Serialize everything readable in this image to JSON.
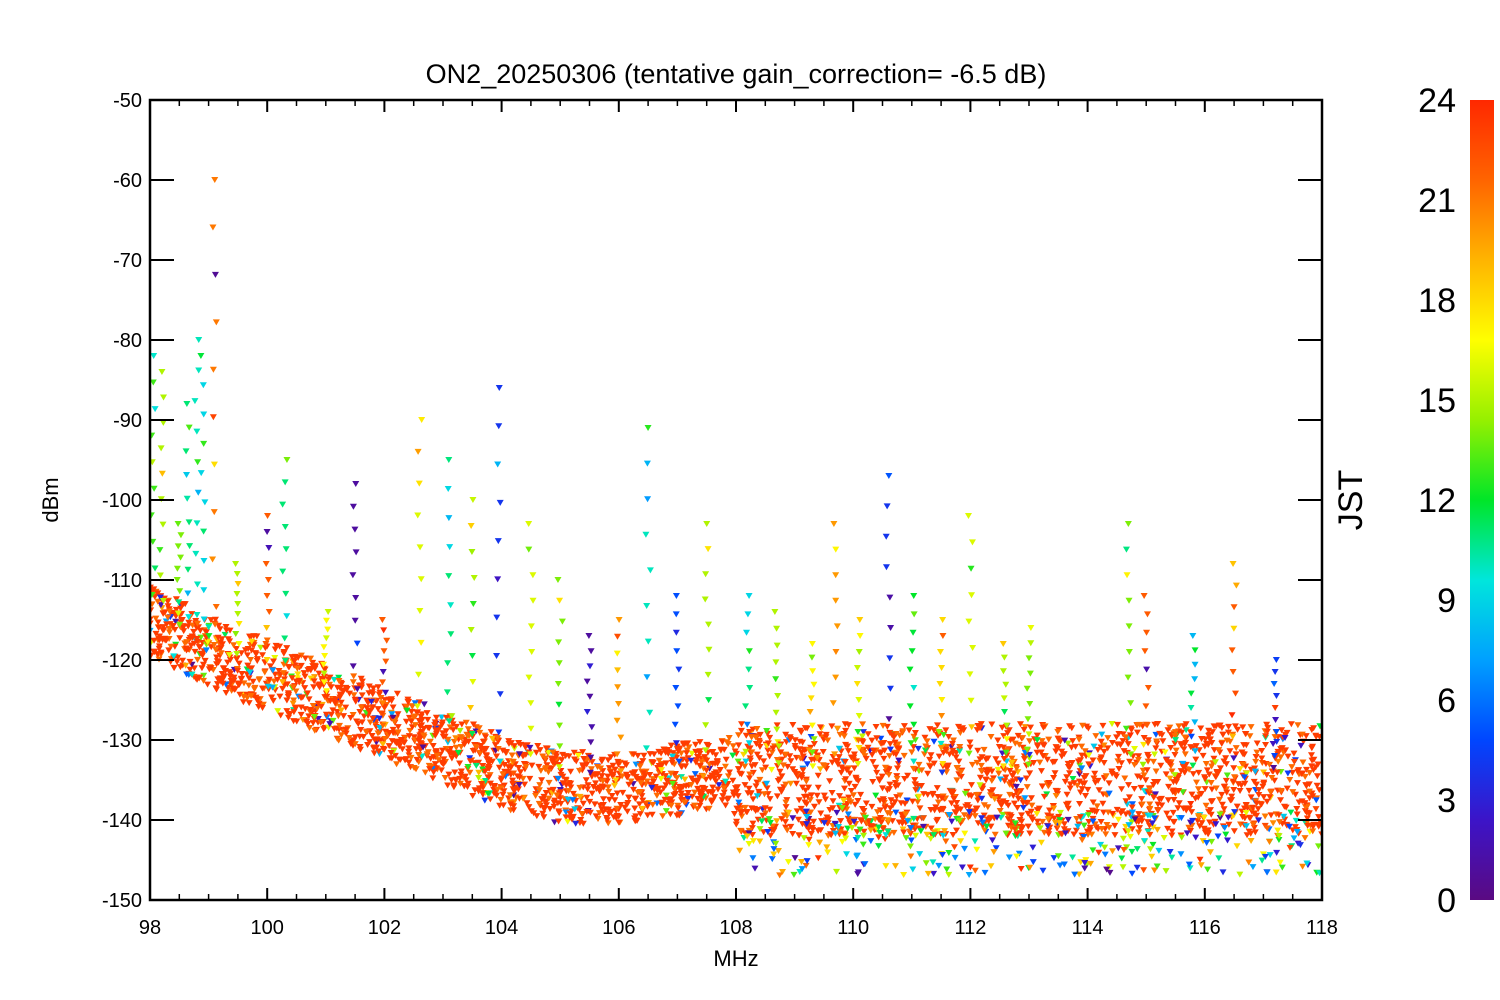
{
  "chart_data": {
    "type": "scatter",
    "title": "ON2_20250306 (tentative gain_correction= -6.5 dB)",
    "xlabel": "MHz",
    "ylabel": "dBm",
    "xlim": [
      98,
      118
    ],
    "ylim": [
      -150,
      -50
    ],
    "x_ticks": [
      98,
      100,
      102,
      104,
      106,
      108,
      110,
      112,
      114,
      116,
      118
    ],
    "y_ticks": [
      -150,
      -140,
      -130,
      -120,
      -110,
      -100,
      -90,
      -80,
      -70,
      -60,
      -50
    ],
    "grid": false,
    "colorbar": {
      "label": "JST",
      "range": [
        0,
        24
      ],
      "ticks": [
        0,
        3,
        6,
        9,
        12,
        15,
        18,
        21,
        24
      ],
      "colormap": "rainbow",
      "colors": [
        "#5a0a82",
        "#3c14c8",
        "#0046ff",
        "#00a0ff",
        "#00e6dc",
        "#00e628",
        "#96f000",
        "#ffff00",
        "#ffb400",
        "#ff6400",
        "#ff2800"
      ]
    },
    "noise_floor": [
      {
        "x": 98.0,
        "y": -115
      },
      {
        "x": 99.0,
        "y": -119
      },
      {
        "x": 100.0,
        "y": -122
      },
      {
        "x": 101.0,
        "y": -125
      },
      {
        "x": 102.0,
        "y": -128
      },
      {
        "x": 103.0,
        "y": -131
      },
      {
        "x": 104.0,
        "y": -134
      },
      {
        "x": 105.0,
        "y": -136
      },
      {
        "x": 106.0,
        "y": -136
      },
      {
        "x": 107.0,
        "y": -135
      },
      {
        "x": 107.9,
        "y": -134
      },
      {
        "x": 108.0,
        "y": -135
      },
      {
        "x": 110.0,
        "y": -135
      },
      {
        "x": 112.0,
        "y": -135
      },
      {
        "x": 114.0,
        "y": -135
      },
      {
        "x": 116.0,
        "y": -135
      },
      {
        "x": 118.0,
        "y": -135
      }
    ],
    "peaks": [
      {
        "x": 98.05,
        "y": -82,
        "hour": 13
      },
      {
        "x": 98.2,
        "y": -84,
        "hour": 15
      },
      {
        "x": 98.5,
        "y": -103,
        "hour": 14
      },
      {
        "x": 98.65,
        "y": -88,
        "hour": 11
      },
      {
        "x": 98.8,
        "y": -80,
        "hour": 10
      },
      {
        "x": 98.9,
        "y": -82,
        "hour": 9
      },
      {
        "x": 99.1,
        "y": -60,
        "hour": 21
      },
      {
        "x": 99.5,
        "y": -108,
        "hour": 15
      },
      {
        "x": 100.0,
        "y": -102,
        "hour": 22
      },
      {
        "x": 100.3,
        "y": -95,
        "hour": 11
      },
      {
        "x": 101.0,
        "y": -114,
        "hour": 17
      },
      {
        "x": 101.5,
        "y": -98,
        "hour": 1
      },
      {
        "x": 102.0,
        "y": -115,
        "hour": 22
      },
      {
        "x": 102.6,
        "y": -90,
        "hour": 16
      },
      {
        "x": 103.1,
        "y": -95,
        "hour": 11
      },
      {
        "x": 103.5,
        "y": -100,
        "hour": 15
      },
      {
        "x": 103.95,
        "y": -86,
        "hour": 4
      },
      {
        "x": 104.5,
        "y": -103,
        "hour": 16
      },
      {
        "x": 105.0,
        "y": -110,
        "hour": 14
      },
      {
        "x": 105.5,
        "y": -117,
        "hour": 1
      },
      {
        "x": 106.0,
        "y": -115,
        "hour": 20
      },
      {
        "x": 106.5,
        "y": -91,
        "hour": 10
      },
      {
        "x": 107.0,
        "y": -112,
        "hour": 5
      },
      {
        "x": 107.5,
        "y": -103,
        "hour": 15
      },
      {
        "x": 108.2,
        "y": -112,
        "hour": 9
      },
      {
        "x": 108.7,
        "y": -114,
        "hour": 15
      },
      {
        "x": 109.3,
        "y": -118,
        "hour": 17
      },
      {
        "x": 109.7,
        "y": -103,
        "hour": 20
      },
      {
        "x": 110.1,
        "y": -115,
        "hour": 16
      },
      {
        "x": 110.6,
        "y": -97,
        "hour": 4
      },
      {
        "x": 111.0,
        "y": -112,
        "hour": 12
      },
      {
        "x": 111.5,
        "y": -115,
        "hour": 18
      },
      {
        "x": 112.0,
        "y": -102,
        "hour": 16
      },
      {
        "x": 112.6,
        "y": -118,
        "hour": 15
      },
      {
        "x": 113.0,
        "y": -116,
        "hour": 14
      },
      {
        "x": 114.7,
        "y": -103,
        "hour": 14
      },
      {
        "x": 115.0,
        "y": -112,
        "hour": 22
      },
      {
        "x": 115.8,
        "y": -117,
        "hour": 8
      },
      {
        "x": 116.5,
        "y": -108,
        "hour": 22
      },
      {
        "x": 117.2,
        "y": -120,
        "hour": 2
      }
    ]
  }
}
